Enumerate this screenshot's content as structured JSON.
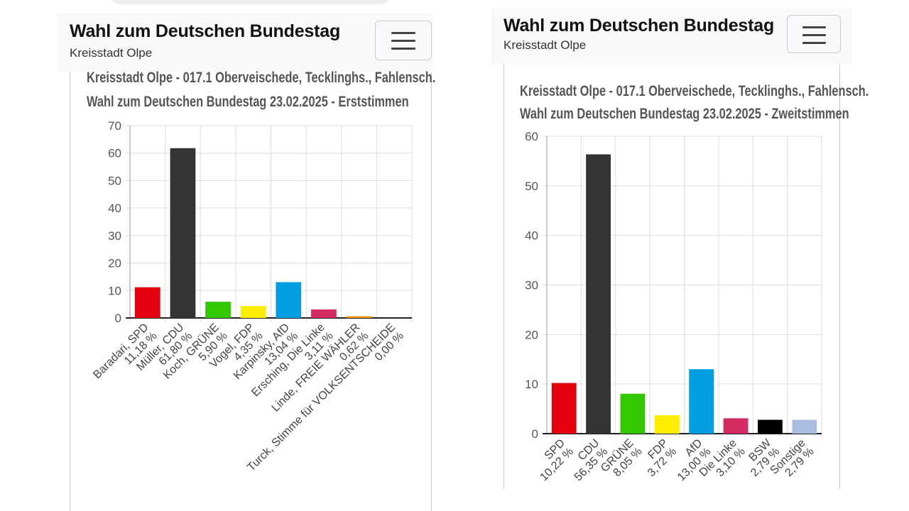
{
  "left_panel": {
    "header": {
      "title": "Wahl zum Deutschen Bundestag",
      "subtitle": "Kreisstadt Olpe"
    },
    "menu_button_icon": "hamburger-menu-icon"
  },
  "right_panel": {
    "header": {
      "title": "Wahl zum Deutschen Bundestag",
      "subtitle": "Kreisstadt Olpe"
    },
    "menu_button_icon": "hamburger-menu-icon"
  },
  "chart_data": [
    {
      "type": "bar",
      "title_line1": "Kreisstadt Olpe - 017.1 Oberveischede, Tecklinghs., Fahlensch.",
      "title_line2": "Wahl zum Deutschen Bundestag 23.02.2025  - Erststimmen",
      "xlabel": "",
      "ylabel": "",
      "ylim": [
        0,
        70
      ],
      "yticks": [
        0,
        10,
        20,
        30,
        40,
        50,
        60,
        70
      ],
      "grid": true,
      "legend": "none",
      "categories": [
        "Baradari, SPD",
        "Müller, CDU",
        "Koch, GRÜNE",
        "Vogel, FDP",
        "Karpinsky, AfD",
        "Ersching, Die Linke",
        "Linde, FREIE WÄHLER",
        "Turck, Stimme für VOLKSENTSCHEIDE"
      ],
      "value_labels": [
        "11,18 %",
        "61,80 %",
        "5,90 %",
        "4,35 %",
        "13,04 %",
        "3,11 %",
        "0,62 %",
        "0,00 %"
      ],
      "values": [
        11.18,
        61.8,
        5.9,
        4.35,
        13.04,
        3.11,
        0.62,
        0.0
      ],
      "colors": [
        "#e3000f",
        "#333333",
        "#32c800",
        "#ffed00",
        "#009ee0",
        "#d42b61",
        "#f29400",
        "#999999"
      ]
    },
    {
      "type": "bar",
      "title_line1": "Kreisstadt Olpe - 017.1 Oberveischede, Tecklinghs., Fahlensch.",
      "title_line2": "Wahl zum Deutschen Bundestag 23.02.2025  - Zweitstimmen",
      "xlabel": "",
      "ylabel": "",
      "ylim": [
        0,
        60
      ],
      "yticks": [
        0,
        10,
        20,
        30,
        40,
        50,
        60
      ],
      "grid": true,
      "legend": "none",
      "categories": [
        "SPD",
        "CDU",
        "GRÜNE",
        "FDP",
        "AfD",
        "Die Linke",
        "BSW",
        "Sonstige"
      ],
      "value_labels": [
        "10,22 %",
        "56,35 %",
        "8,05 %",
        "3,72 %",
        "13,00 %",
        "3,10 %",
        "2,79 %",
        "2,79 %"
      ],
      "values": [
        10.22,
        56.35,
        8.05,
        3.72,
        13.0,
        3.1,
        2.79,
        2.79
      ],
      "colors": [
        "#e3000f",
        "#333333",
        "#32c800",
        "#ffed00",
        "#009ee0",
        "#d42b61",
        "#000000",
        "#a9bde0"
      ]
    }
  ]
}
